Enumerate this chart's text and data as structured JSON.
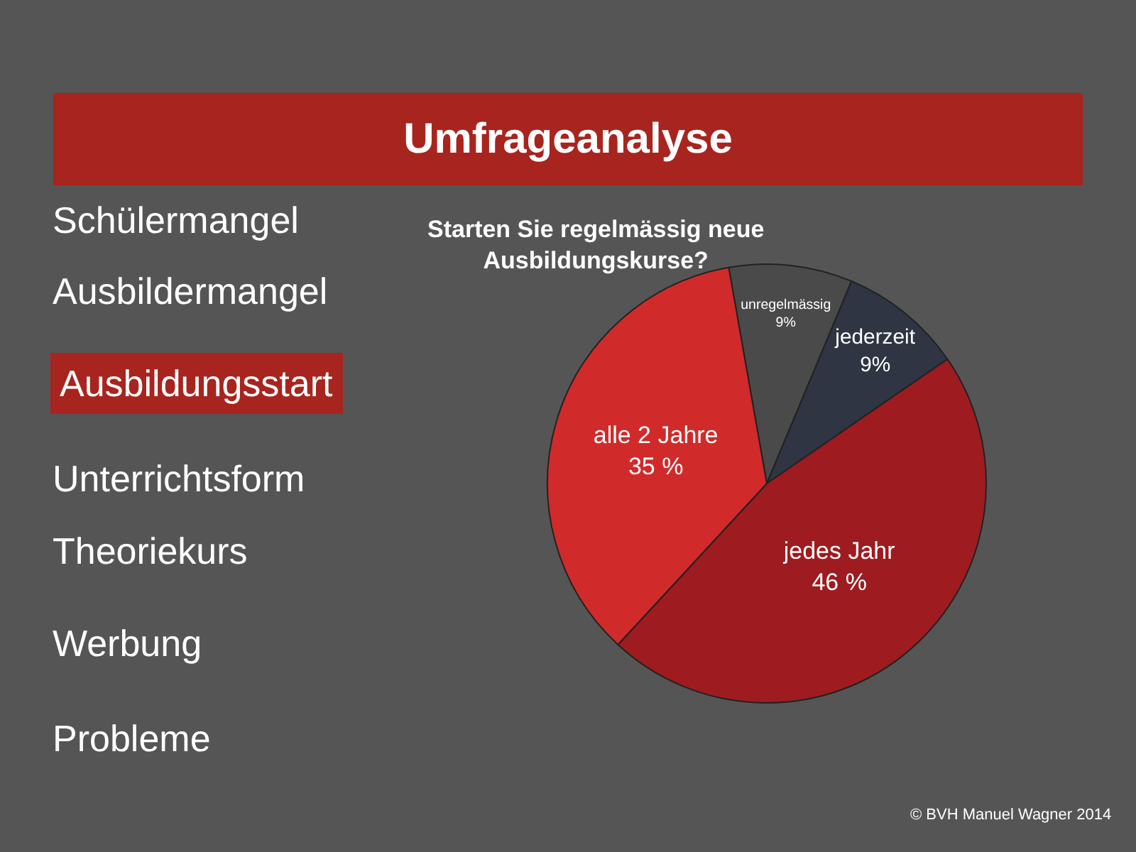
{
  "chart_data": {
    "type": "pie",
    "title": "Umfrageanalyse",
    "subtitle": "Starten Sie regelmässig neue Ausbildungskurse?",
    "categories": [
      "unregelmässig",
      "jederzeit",
      "jedes Jahr",
      "alle 2 Jahre"
    ],
    "values": [
      9,
      9,
      46,
      35
    ],
    "value_labels": [
      "9%",
      "9%",
      "46 %",
      "35 %"
    ],
    "colors": [
      "#4a4a4a",
      "#2f3542",
      "#9e1b20",
      "#d12a2a"
    ],
    "legend": false,
    "annotations": [
      "Schülermangel",
      "Ausbildermangel",
      "Ausbildungsstart",
      "Unterrichtsform",
      "Theoriekurs",
      "Werbung",
      "Probleme",
      "© BVH Manuel Wagner 2014"
    ]
  }
}
